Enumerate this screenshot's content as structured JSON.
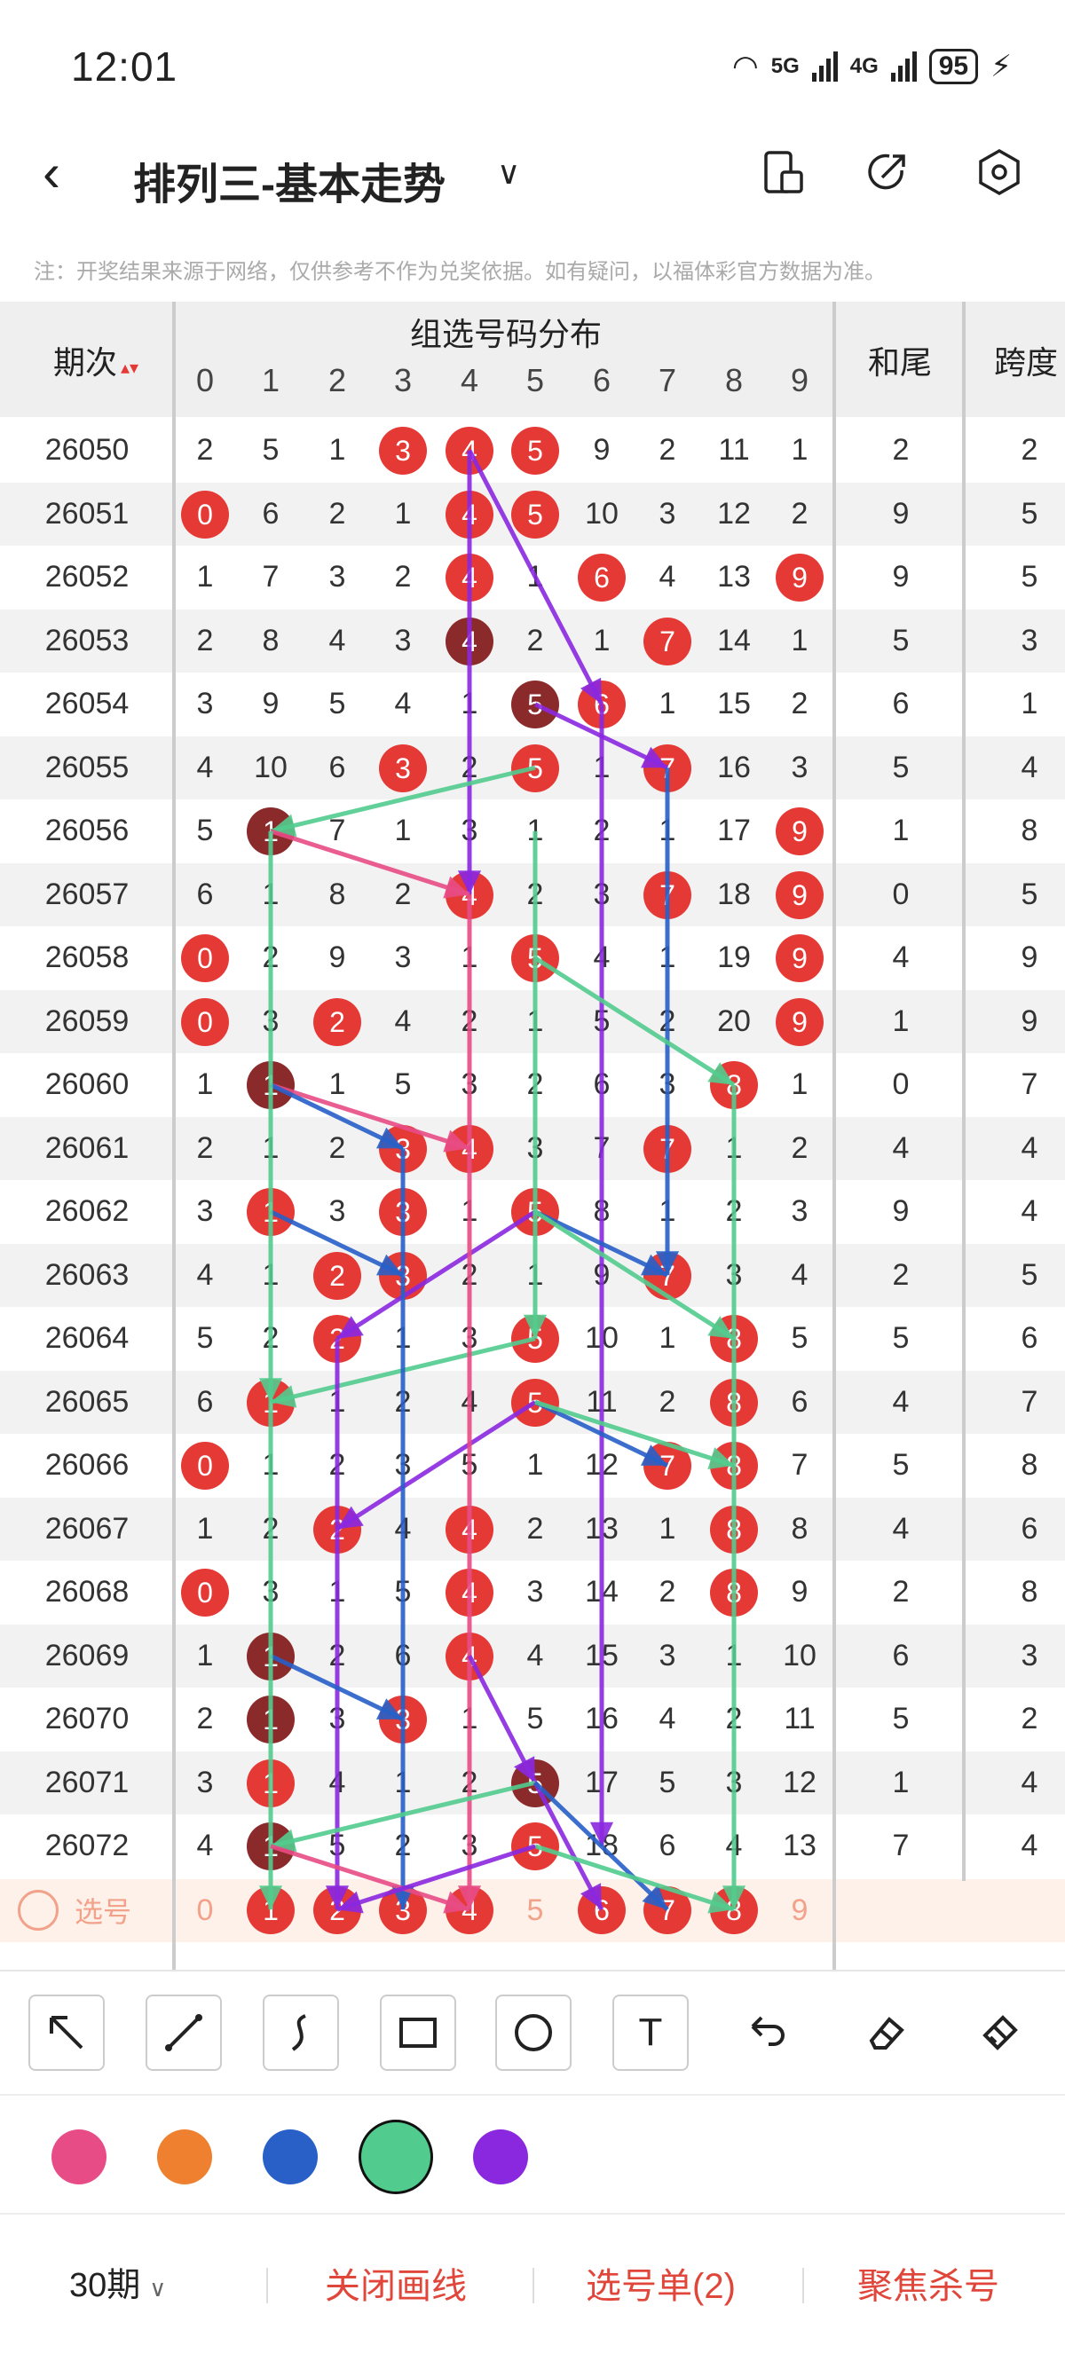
{
  "status_bar": {
    "time": "12:01",
    "net1": "5G",
    "net2": "4G",
    "battery": "95"
  },
  "header": {
    "title": "排列三-基本走势"
  },
  "notice": "注：开奖结果来源于网络，仅供参考不作为兑奖依据。如有疑问，以福体彩官方数据为准。",
  "table": {
    "col_issue": "期次",
    "col_group": "组选号码分布",
    "col_sum_tail": "和尾",
    "col_span": "跨度",
    "digits": [
      "0",
      "1",
      "2",
      "3",
      "4",
      "5",
      "6",
      "7",
      "8",
      "9"
    ],
    "rows": [
      {
        "issue": "26050",
        "cells": [
          "2",
          "5",
          "1",
          "3",
          "4",
          "5",
          "9",
          "2",
          "11",
          "1"
        ],
        "hits": [
          3,
          4,
          5
        ],
        "sum_tail": "2",
        "span": "2"
      },
      {
        "issue": "26051",
        "cells": [
          "0",
          "6",
          "2",
          "1",
          "4",
          "5",
          "10",
          "3",
          "12",
          "2"
        ],
        "hits": [
          0,
          4,
          5
        ],
        "sum_tail": "9",
        "span": "5"
      },
      {
        "issue": "26052",
        "cells": [
          "1",
          "7",
          "3",
          "2",
          "4",
          "1",
          "6",
          "4",
          "13",
          "9"
        ],
        "hits": [
          4,
          6,
          9
        ],
        "sum_tail": "9",
        "span": "5"
      },
      {
        "issue": "26053",
        "cells": [
          "2",
          "8",
          "4",
          "3",
          "4",
          "2",
          "1",
          "7",
          "14",
          "1"
        ],
        "hits": [
          4,
          7
        ],
        "sum_tail": "5",
        "span": "3"
      },
      {
        "issue": "26054",
        "cells": [
          "3",
          "9",
          "5",
          "4",
          "1",
          "5",
          "6",
          "1",
          "15",
          "2"
        ],
        "hits": [
          5,
          6
        ],
        "sum_tail": "6",
        "span": "1"
      },
      {
        "issue": "26055",
        "cells": [
          "4",
          "10",
          "6",
          "3",
          "2",
          "5",
          "1",
          "7",
          "16",
          "3"
        ],
        "hits": [
          3,
          5,
          7
        ],
        "sum_tail": "5",
        "span": "4"
      },
      {
        "issue": "26056",
        "cells": [
          "5",
          "1",
          "7",
          "1",
          "3",
          "1",
          "2",
          "1",
          "17",
          "9"
        ],
        "hits": [
          1,
          9
        ],
        "sum_tail": "1",
        "span": "8"
      },
      {
        "issue": "26057",
        "cells": [
          "6",
          "1",
          "8",
          "2",
          "4",
          "2",
          "3",
          "7",
          "18",
          "9"
        ],
        "hits": [
          4,
          7,
          9
        ],
        "sum_tail": "0",
        "span": "5"
      },
      {
        "issue": "26058",
        "cells": [
          "0",
          "2",
          "9",
          "3",
          "1",
          "5",
          "4",
          "1",
          "19",
          "9"
        ],
        "hits": [
          0,
          5,
          9
        ],
        "sum_tail": "4",
        "span": "9"
      },
      {
        "issue": "26059",
        "cells": [
          "0",
          "3",
          "2",
          "4",
          "2",
          "1",
          "5",
          "2",
          "20",
          "9"
        ],
        "hits": [
          0,
          2,
          9
        ],
        "sum_tail": "1",
        "span": "9"
      },
      {
        "issue": "26060",
        "cells": [
          "1",
          "1",
          "1",
          "5",
          "3",
          "2",
          "6",
          "3",
          "8",
          "1"
        ],
        "hits": [
          1,
          8
        ],
        "sum_tail": "0",
        "span": "7"
      },
      {
        "issue": "26061",
        "cells": [
          "2",
          "1",
          "2",
          "3",
          "4",
          "3",
          "7",
          "7",
          "1",
          "2"
        ],
        "hits": [
          3,
          4,
          7
        ],
        "sum_tail": "4",
        "span": "4"
      },
      {
        "issue": "26062",
        "cells": [
          "3",
          "1",
          "3",
          "3",
          "1",
          "5",
          "8",
          "1",
          "2",
          "3"
        ],
        "hits": [
          1,
          3,
          5
        ],
        "sum_tail": "9",
        "span": "4"
      },
      {
        "issue": "26063",
        "cells": [
          "4",
          "1",
          "2",
          "3",
          "2",
          "1",
          "9",
          "7",
          "3",
          "4"
        ],
        "hits": [
          2,
          3,
          7
        ],
        "sum_tail": "2",
        "span": "5"
      },
      {
        "issue": "26064",
        "cells": [
          "5",
          "2",
          "2",
          "1",
          "3",
          "5",
          "10",
          "1",
          "8",
          "5"
        ],
        "hits": [
          2,
          5,
          8
        ],
        "sum_tail": "5",
        "span": "6"
      },
      {
        "issue": "26065",
        "cells": [
          "6",
          "1",
          "1",
          "2",
          "4",
          "5",
          "11",
          "2",
          "8",
          "6"
        ],
        "hits": [
          1,
          5,
          8
        ],
        "sum_tail": "4",
        "span": "7"
      },
      {
        "issue": "26066",
        "cells": [
          "0",
          "1",
          "2",
          "3",
          "5",
          "1",
          "12",
          "7",
          "8",
          "7"
        ],
        "hits": [
          0,
          7,
          8
        ],
        "sum_tail": "5",
        "span": "8"
      },
      {
        "issue": "26067",
        "cells": [
          "1",
          "2",
          "2",
          "4",
          "4",
          "2",
          "13",
          "1",
          "8",
          "8"
        ],
        "hits": [
          2,
          4,
          8
        ],
        "sum_tail": "4",
        "span": "6"
      },
      {
        "issue": "26068",
        "cells": [
          "0",
          "3",
          "1",
          "5",
          "4",
          "3",
          "14",
          "2",
          "8",
          "9"
        ],
        "hits": [
          0,
          4,
          8
        ],
        "sum_tail": "2",
        "span": "8"
      },
      {
        "issue": "26069",
        "cells": [
          "1",
          "1",
          "2",
          "6",
          "4",
          "4",
          "15",
          "3",
          "1",
          "10"
        ],
        "hits": [
          1,
          4
        ],
        "sum_tail": "6",
        "span": "3"
      },
      {
        "issue": "26070",
        "cells": [
          "2",
          "1",
          "3",
          "3",
          "1",
          "5",
          "16",
          "4",
          "2",
          "11"
        ],
        "hits": [
          1,
          3
        ],
        "sum_tail": "5",
        "span": "2"
      },
      {
        "issue": "26071",
        "cells": [
          "3",
          "1",
          "4",
          "1",
          "2",
          "5",
          "17",
          "5",
          "3",
          "12"
        ],
        "hits": [
          1,
          5
        ],
        "sum_tail": "1",
        "span": "4"
      },
      {
        "issue": "26072",
        "cells": [
          "4",
          "1",
          "5",
          "2",
          "3",
          "5",
          "18",
          "6",
          "4",
          "13"
        ],
        "hits": [
          1,
          5
        ],
        "sum_tail": "7",
        "span": "4"
      }
    ],
    "select_row": {
      "label": "选号",
      "values": [
        "0",
        "1",
        "2",
        "3",
        "4",
        "5",
        "6",
        "7",
        "8",
        "9"
      ],
      "selected": [
        1,
        2,
        3,
        4,
        6,
        7,
        8
      ]
    }
  },
  "tools": [
    "arrow-tool",
    "line-tool",
    "curve-tool",
    "rect-tool",
    "circle-tool",
    "text-tool",
    "undo-tool",
    "eraser-tool",
    "clear-tool"
  ],
  "tool_text": "T",
  "colors": [
    "#e84c86",
    "#ee8030",
    "#2860c8",
    "#52cc8e",
    "#8a28e0"
  ],
  "selected_color": "#52cc8e",
  "bottom": {
    "period": "30期",
    "close_draw": "关闭画线",
    "ticket": "选号单(2)",
    "focus_kill": "聚焦杀号"
  }
}
